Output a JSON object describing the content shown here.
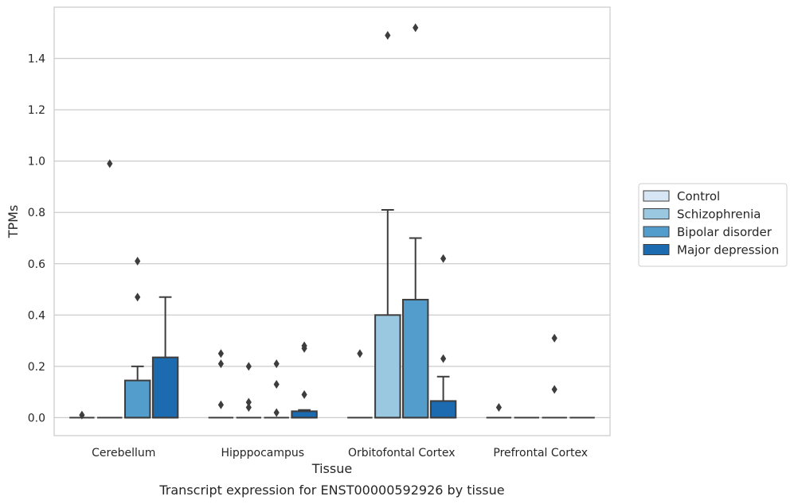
{
  "chart_data": {
    "type": "box",
    "title": "",
    "xlabel": "Tissue",
    "ylabel": "TPMs",
    "caption": "Transcript expression for ENST00000592926 by tissue",
    "ylim": [
      -0.07,
      1.6
    ],
    "yticks": [
      "0.0",
      "0.2",
      "0.4",
      "0.6",
      "0.8",
      "1.0",
      "1.2",
      "1.4"
    ],
    "grid": "horizontal",
    "legend_position": "right",
    "categories": [
      "Cerebellum",
      "Hipppocampus",
      "Orbitofontal Cortex",
      "Prefrontal Cortex"
    ],
    "series": [
      {
        "name": "Control",
        "color": "#d6e6f4",
        "boxes": [
          {
            "q1": 0,
            "median": 0,
            "q3": 0,
            "whisker_low": 0,
            "whisker_high": 0,
            "outliers": [
              0.01
            ]
          },
          {
            "q1": 0,
            "median": 0,
            "q3": 0,
            "whisker_low": 0,
            "whisker_high": 0,
            "outliers": [
              0.05,
              0.21,
              0.25
            ]
          },
          {
            "q1": 0,
            "median": 0,
            "q3": 0,
            "whisker_low": 0,
            "whisker_high": 0,
            "outliers": [
              0.25
            ]
          },
          {
            "q1": 0,
            "median": 0,
            "q3": 0,
            "whisker_low": 0,
            "whisker_high": 0,
            "outliers": [
              0.04
            ]
          }
        ]
      },
      {
        "name": "Schizophrenia",
        "color": "#9ac8e0",
        "boxes": [
          {
            "q1": 0,
            "median": 0,
            "q3": 0,
            "whisker_low": 0,
            "whisker_high": 0,
            "outliers": [
              0.99
            ]
          },
          {
            "q1": 0,
            "median": 0,
            "q3": 0,
            "whisker_low": 0,
            "whisker_high": 0,
            "outliers": [
              0.04,
              0.06,
              0.2
            ]
          },
          {
            "q1": 0,
            "median": 0,
            "q3": 0.4,
            "whisker_low": 0,
            "whisker_high": 0.81,
            "outliers": [
              1.49
            ]
          },
          {
            "q1": 0,
            "median": 0,
            "q3": 0,
            "whisker_low": 0,
            "whisker_high": 0,
            "outliers": []
          }
        ]
      },
      {
        "name": "Bipolar disorder",
        "color": "#529dcc",
        "boxes": [
          {
            "q1": 0,
            "median": 0,
            "q3": 0.145,
            "whisker_low": 0,
            "whisker_high": 0.2,
            "outliers": [
              0.47,
              0.61
            ]
          },
          {
            "q1": 0,
            "median": 0,
            "q3": 0,
            "whisker_low": 0,
            "whisker_high": 0,
            "outliers": [
              0.02,
              0.13,
              0.21
            ]
          },
          {
            "q1": 0,
            "median": 0,
            "q3": 0.46,
            "whisker_low": 0,
            "whisker_high": 0.7,
            "outliers": [
              1.52
            ]
          },
          {
            "q1": 0,
            "median": 0,
            "q3": 0,
            "whisker_low": 0,
            "whisker_high": 0,
            "outliers": [
              0.11,
              0.31
            ]
          }
        ]
      },
      {
        "name": "Major depression",
        "color": "#1c6aaf",
        "boxes": [
          {
            "q1": 0,
            "median": 0,
            "q3": 0.235,
            "whisker_low": 0,
            "whisker_high": 0.47,
            "outliers": []
          },
          {
            "q1": 0,
            "median": 0,
            "q3": 0.025,
            "whisker_low": 0,
            "whisker_high": 0.03,
            "outliers": [
              0.09,
              0.27,
              0.28
            ]
          },
          {
            "q1": 0,
            "median": 0,
            "q3": 0.065,
            "whisker_low": 0,
            "whisker_high": 0.16,
            "outliers": [
              0.23,
              0.62
            ]
          },
          {
            "q1": 0,
            "median": 0,
            "q3": 0,
            "whisker_low": 0,
            "whisker_high": 0,
            "outliers": []
          }
        ]
      }
    ]
  }
}
